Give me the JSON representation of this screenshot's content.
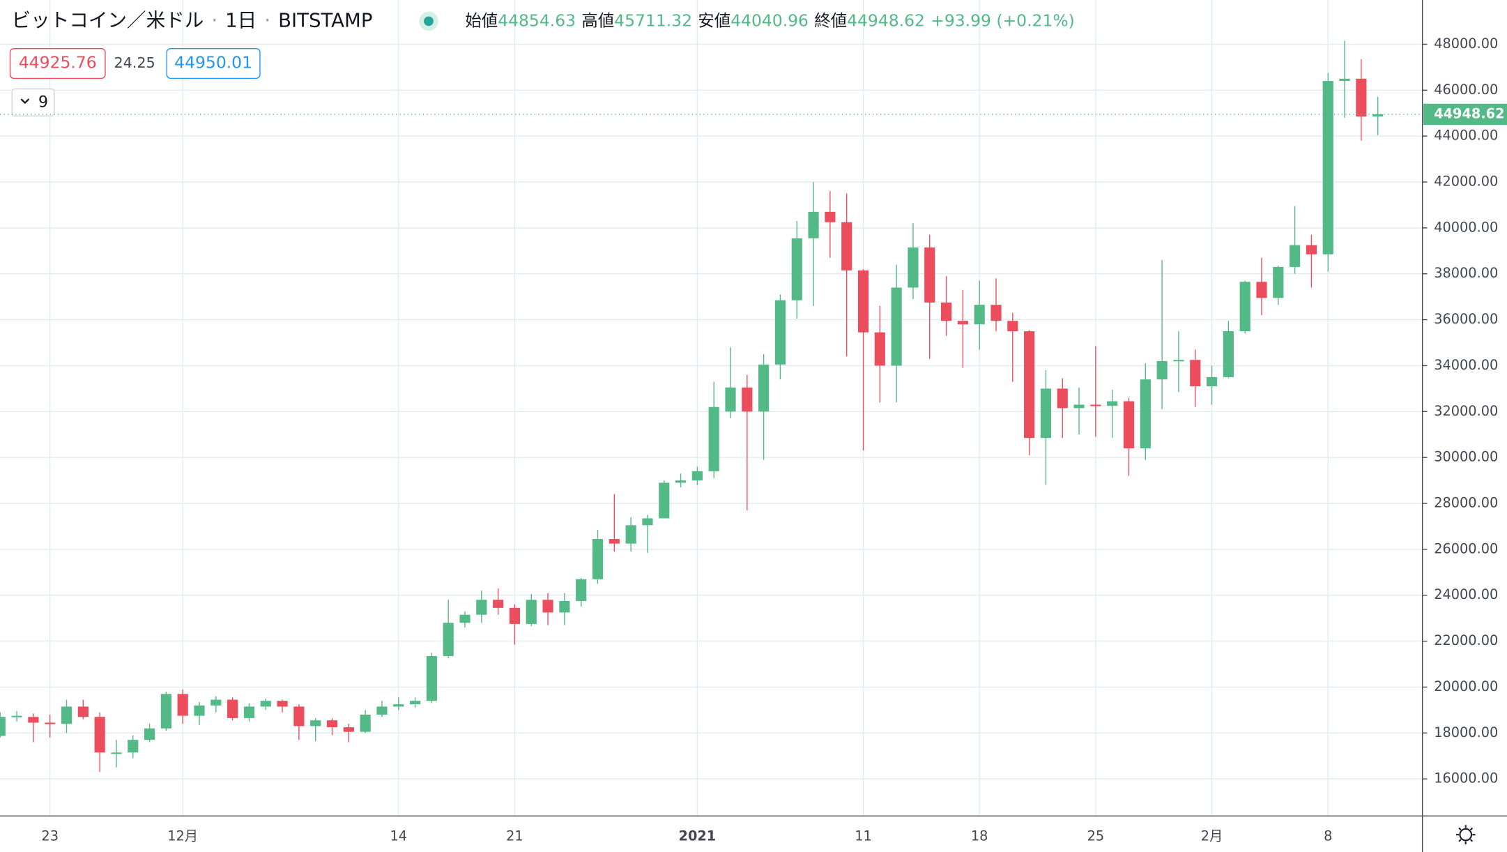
{
  "toolbar": {
    "bid": "44925.76",
    "spread": "24.25",
    "ask": "44950.01",
    "indicator_count": "9"
  },
  "chart_data": {
    "type": "candlestick",
    "title": "ビットコイン／米ドル",
    "interval": "1日",
    "exchange": "BITSTAMP",
    "ohlc_labels": [
      "始値",
      "高値",
      "安値",
      "終値"
    ],
    "change": "+93.99 (+0.21%)",
    "up_color": "#53b987",
    "down_color": "#eb4d5c",
    "grid": true,
    "categories": [
      null,
      null,
      null,
      "23",
      null,
      null,
      null,
      null,
      null,
      null,
      null,
      "12月",
      null,
      null,
      null,
      null,
      null,
      null,
      null,
      null,
      null,
      null,
      null,
      null,
      "14",
      null,
      null,
      null,
      null,
      null,
      null,
      "21",
      null,
      null,
      null,
      null,
      null,
      null,
      null,
      null,
      null,
      null,
      "2021",
      null,
      null,
      null,
      null,
      null,
      null,
      null,
      null,
      null,
      "11",
      null,
      null,
      null,
      null,
      null,
      null,
      "18",
      null,
      null,
      null,
      null,
      null,
      null,
      "25",
      null,
      null,
      null,
      null,
      null,
      null,
      "2月",
      null,
      null,
      null,
      null,
      null,
      null,
      "8",
      null,
      null,
      null
    ],
    "open": [
      17870,
      18700,
      18700,
      18450,
      18400,
      19150,
      18700,
      17150,
      17150,
      17700,
      18200,
      19700,
      18750,
      19200,
      19450,
      18650,
      19150,
      19400,
      19150,
      18300,
      18550,
      18250,
      18050,
      18800,
      19150,
      19250,
      19400,
      21350,
      22800,
      23150,
      23800,
      23450,
      22750,
      23800,
      23250,
      23750,
      24700,
      26450,
      26250,
      27050,
      27350,
      28900,
      29000,
      29400,
      32000,
      33050,
      32000,
      34050,
      36850,
      39550,
      40700,
      40250,
      38150,
      35450,
      34000,
      37400,
      39150,
      36750,
      35950,
      35800,
      36650,
      35950,
      35500,
      30850,
      33000,
      32150,
      32300,
      32250,
      32450,
      30400,
      33400,
      34200,
      34250,
      33100,
      33500,
      35500,
      37650,
      36950,
      38300,
      39250,
      38850,
      46400,
      46500,
      44854.63
    ],
    "high": [
      18900,
      18950,
      18850,
      18800,
      19450,
      19450,
      18900,
      17700,
      17900,
      18400,
      19800,
      19900,
      19350,
      19600,
      19550,
      19300,
      19500,
      19450,
      19250,
      18650,
      18650,
      18400,
      19000,
      19400,
      19550,
      19550,
      21500,
      23800,
      23300,
      24200,
      24300,
      23600,
      24050,
      24100,
      24100,
      24750,
      26850,
      28400,
      27400,
      27500,
      29000,
      29300,
      29600,
      33300,
      34800,
      33600,
      34500,
      37100,
      40300,
      42000,
      41600,
      41500,
      38200,
      36600,
      38400,
      40200,
      39700,
      37900,
      37300,
      37700,
      37800,
      36300,
      35550,
      33800,
      33450,
      33050,
      34850,
      32950,
      32600,
      34100,
      38600,
      35500,
      34700,
      34000,
      35950,
      37700,
      38700,
      38350,
      40950,
      39700,
      46750,
      48150,
      47350,
      45711.32
    ],
    "low": [
      17800,
      18500,
      17600,
      17800,
      18000,
      18600,
      16300,
      16500,
      16900,
      17600,
      18100,
      18400,
      18350,
      18900,
      18550,
      18500,
      19000,
      18900,
      17700,
      17650,
      17900,
      17600,
      18000,
      18700,
      19000,
      19100,
      19300,
      21250,
      22600,
      22800,
      23150,
      21850,
      22650,
      22700,
      22700,
      23500,
      24500,
      25900,
      25900,
      25850,
      27350,
      28700,
      28800,
      29100,
      31700,
      27700,
      29900,
      33400,
      36050,
      36600,
      38700,
      34400,
      30300,
      32400,
      32400,
      36900,
      34300,
      35300,
      33900,
      34700,
      35500,
      33300,
      30100,
      28800,
      30850,
      31000,
      30900,
      30850,
      29200,
      29900,
      32100,
      32850,
      32200,
      32300,
      33450,
      35400,
      36200,
      36650,
      38000,
      37400,
      38100,
      44800,
      43800,
      44040.96
    ],
    "close": [
      18700,
      18750,
      18450,
      18400,
      19150,
      18700,
      17150,
      17150,
      17700,
      18200,
      19700,
      18750,
      19200,
      19450,
      18650,
      19150,
      19400,
      19150,
      18300,
      18550,
      18250,
      18050,
      18800,
      19150,
      19250,
      19400,
      21350,
      22800,
      23150,
      23800,
      23450,
      22750,
      23800,
      23250,
      23750,
      24700,
      26450,
      26250,
      27050,
      27350,
      28900,
      29000,
      29400,
      32200,
      33050,
      32000,
      34050,
      36850,
      39550,
      40700,
      40250,
      38150,
      35450,
      34000,
      37400,
      39150,
      36750,
      35950,
      35800,
      36650,
      35950,
      35500,
      30850,
      33000,
      32150,
      32300,
      32250,
      32450,
      30400,
      33400,
      34200,
      34250,
      33100,
      33500,
      35500,
      37650,
      36950,
      38300,
      39250,
      38850,
      46400,
      46500,
      44850,
      44948.62
    ],
    "ylim": [
      14408,
      49927
    ],
    "yticks": [
      {
        "value": 16000,
        "label": "16000.00"
      },
      {
        "value": 18000,
        "label": "18000.00"
      },
      {
        "value": 20000,
        "label": "20000.00"
      },
      {
        "value": 22000,
        "label": "22000.00"
      },
      {
        "value": 24000,
        "label": "24000.00"
      },
      {
        "value": 26000,
        "label": "26000.00"
      },
      {
        "value": 28000,
        "label": "28000.00"
      },
      {
        "value": 30000,
        "label": "30000.00"
      },
      {
        "value": 32000,
        "label": "32000.00"
      },
      {
        "value": 34000,
        "label": "34000.00"
      },
      {
        "value": 36000,
        "label": "36000.00"
      },
      {
        "value": 38000,
        "label": "38000.00"
      },
      {
        "value": 40000,
        "label": "40000.00"
      },
      {
        "value": 42000,
        "label": "42000.00"
      },
      {
        "value": 44000,
        "label": "44000.00"
      },
      {
        "value": 46000,
        "label": "46000.00"
      },
      {
        "value": 48000,
        "label": "48000.00"
      }
    ]
  }
}
